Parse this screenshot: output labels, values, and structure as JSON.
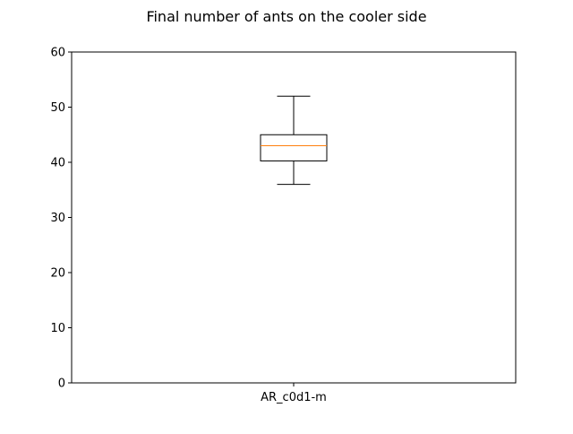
{
  "chart_data": {
    "type": "box",
    "title": "Final number of ants on the cooler side",
    "xlabel": "",
    "ylabel": "",
    "ylim": [
      0,
      60
    ],
    "yticks": [
      0,
      10,
      20,
      30,
      40,
      50,
      60
    ],
    "grid": false,
    "categories": [
      "AR_c0d1-m"
    ],
    "boxes": [
      {
        "category": "AR_c0d1-m",
        "whisker_low": 36,
        "q1": 40.25,
        "median": 43,
        "q3": 45,
        "whisker_high": 52
      }
    ],
    "colors": {
      "box": "#000000",
      "median": "#ff7f0e",
      "whisker": "#000000",
      "frame": "#000000"
    }
  }
}
